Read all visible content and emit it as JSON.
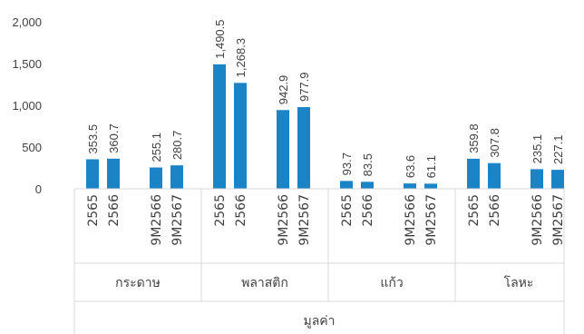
{
  "chart_data": {
    "type": "bar",
    "title": "",
    "xlabel": "",
    "ylabel": "",
    "ylim": [
      0,
      2000
    ],
    "yticks": [
      {
        "value": 0,
        "label": "0"
      },
      {
        "value": 500,
        "label": "500"
      },
      {
        "value": 1000,
        "label": "1,000"
      },
      {
        "value": 1500,
        "label": "1,500"
      },
      {
        "value": 2000,
        "label": "2,000"
      }
    ],
    "grid": false,
    "legend": "none",
    "bar_color": "#1b84c6",
    "top_group": "มูลค่า",
    "groups": [
      {
        "label": "กระดาษ",
        "bars": [
          {
            "period": "2565",
            "value": 353.5,
            "label": "353.5"
          },
          {
            "period": "2566",
            "value": 360.7,
            "label": "360.7"
          },
          {
            "period": "9M2566",
            "value": 255.1,
            "label": "255.1"
          },
          {
            "period": "9M2567",
            "value": 280.7,
            "label": "280.7"
          }
        ]
      },
      {
        "label": "พลาสติก",
        "bars": [
          {
            "period": "2565",
            "value": 1490.5,
            "label": "1,490.5"
          },
          {
            "period": "2566",
            "value": 1268.3,
            "label": "1,268.3"
          },
          {
            "period": "9M2566",
            "value": 942.9,
            "label": "942.9"
          },
          {
            "period": "9M2567",
            "value": 977.9,
            "label": "977.9"
          }
        ]
      },
      {
        "label": "แก้ว",
        "bars": [
          {
            "period": "2565",
            "value": 93.7,
            "label": "93.7"
          },
          {
            "period": "2566",
            "value": 83.5,
            "label": "83.5"
          },
          {
            "period": "9M2566",
            "value": 63.6,
            "label": "63.6"
          },
          {
            "period": "9M2567",
            "value": 61.1,
            "label": "61.1"
          }
        ]
      },
      {
        "label": "โลหะ",
        "bars": [
          {
            "period": "2565",
            "value": 359.8,
            "label": "359.8"
          },
          {
            "period": "2566",
            "value": 307.8,
            "label": "307.8"
          },
          {
            "period": "9M2566",
            "value": 235.1,
            "label": "235.1"
          },
          {
            "period": "9M2567",
            "value": 227.1,
            "label": "227.1"
          }
        ]
      }
    ]
  }
}
